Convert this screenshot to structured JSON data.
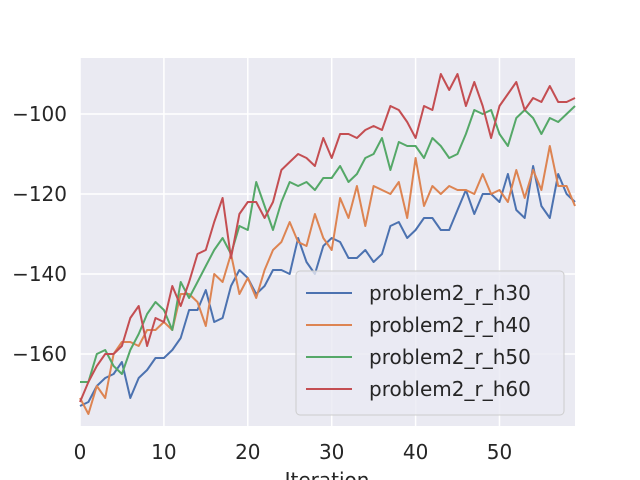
{
  "chart_data": {
    "type": "line",
    "title": "",
    "xlabel": "Iteration",
    "ylabel": "",
    "xlim": [
      0,
      59
    ],
    "ylim": [
      -178,
      -86
    ],
    "xticks": [
      0,
      10,
      20,
      30,
      40,
      50
    ],
    "yticks": [
      -160,
      -140,
      -120,
      -100
    ],
    "grid": true,
    "legend_position": "lower-right",
    "x": [
      0,
      1,
      2,
      3,
      4,
      5,
      6,
      7,
      8,
      9,
      10,
      11,
      12,
      13,
      14,
      15,
      16,
      17,
      18,
      19,
      20,
      21,
      22,
      23,
      24,
      25,
      26,
      27,
      28,
      29,
      30,
      31,
      32,
      33,
      34,
      35,
      36,
      37,
      38,
      39,
      40,
      41,
      42,
      43,
      44,
      45,
      46,
      47,
      48,
      49,
      50,
      51,
      52,
      53,
      54,
      55,
      56,
      57,
      58,
      59
    ],
    "series": [
      {
        "name": "problem2_r_h30",
        "color": "#4c72b0",
        "values": [
          -173,
          -172,
          -168,
          -166,
          -165,
          -162,
          -171,
          -166,
          -164,
          -161,
          -161,
          -159,
          -156,
          -149,
          -149,
          -144,
          -152,
          -151,
          -143,
          -139,
          -141,
          -145,
          -143,
          -139,
          -139,
          -140,
          -131,
          -137,
          -140,
          -133,
          -131,
          -132,
          -136,
          -136,
          -134,
          -137,
          -135,
          -128,
          -127,
          -131,
          -129,
          -126,
          -126,
          -129,
          -129,
          -124,
          -119,
          -125,
          -120,
          -120,
          -122,
          -115,
          -124,
          -126,
          -113,
          -123,
          -126,
          -115,
          -120,
          -122
        ]
      },
      {
        "name": "problem2_r_h40",
        "color": "#dd8452",
        "values": [
          -171,
          -175,
          -168,
          -171,
          -160,
          -157,
          -157,
          -158,
          -154,
          -154,
          -152,
          -154,
          -145,
          -145,
          -147,
          -153,
          -140,
          -142,
          -135,
          -145,
          -141,
          -146,
          -139,
          -134,
          -132,
          -127,
          -132,
          -133,
          -125,
          -131,
          -134,
          -121,
          -126,
          -118,
          -128,
          -118,
          -119,
          -120,
          -117,
          -126,
          -111,
          -123,
          -118,
          -120,
          -118,
          -119,
          -119,
          -120,
          -115,
          -120,
          -119,
          -122,
          -114,
          -121,
          -114,
          -119,
          -108,
          -118,
          -118,
          -123
        ]
      },
      {
        "name": "problem2_r_h50",
        "color": "#55a868",
        "values": [
          -167,
          -167,
          -160,
          -159,
          -163,
          -165,
          -159,
          -155,
          -150,
          -147,
          -149,
          -154,
          -142,
          -146,
          -142,
          -138,
          -134,
          -131,
          -135,
          -128,
          -129,
          -117,
          -123,
          -129,
          -122,
          -117,
          -118,
          -117,
          -119,
          -116,
          -116,
          -113,
          -117,
          -115,
          -111,
          -110,
          -106,
          -114,
          -107,
          -108,
          -108,
          -111,
          -106,
          -108,
          -111,
          -110,
          -105,
          -99,
          -100,
          -99,
          -105,
          -108,
          -101,
          -99,
          -101,
          -105,
          -101,
          -102,
          -100,
          -98
        ]
      },
      {
        "name": "problem2_r_h60",
        "color": "#c44e52",
        "values": [
          -172,
          -167,
          -163,
          -160,
          -160,
          -158,
          -151,
          -148,
          -158,
          -151,
          -152,
          -143,
          -148,
          -142,
          -135,
          -134,
          -127,
          -121,
          -136,
          -125,
          -122,
          -122,
          -126,
          -122,
          -114,
          -112,
          -110,
          -111,
          -113,
          -106,
          -111,
          -105,
          -105,
          -106,
          -104,
          -103,
          -104,
          -98,
          -99,
          -102,
          -106,
          -98,
          -99,
          -90,
          -94,
          -90,
          -98,
          -92,
          -98,
          -106,
          -98,
          -95,
          -92,
          -99,
          -96,
          -97,
          -93,
          -97,
          -97,
          -96
        ]
      }
    ]
  }
}
